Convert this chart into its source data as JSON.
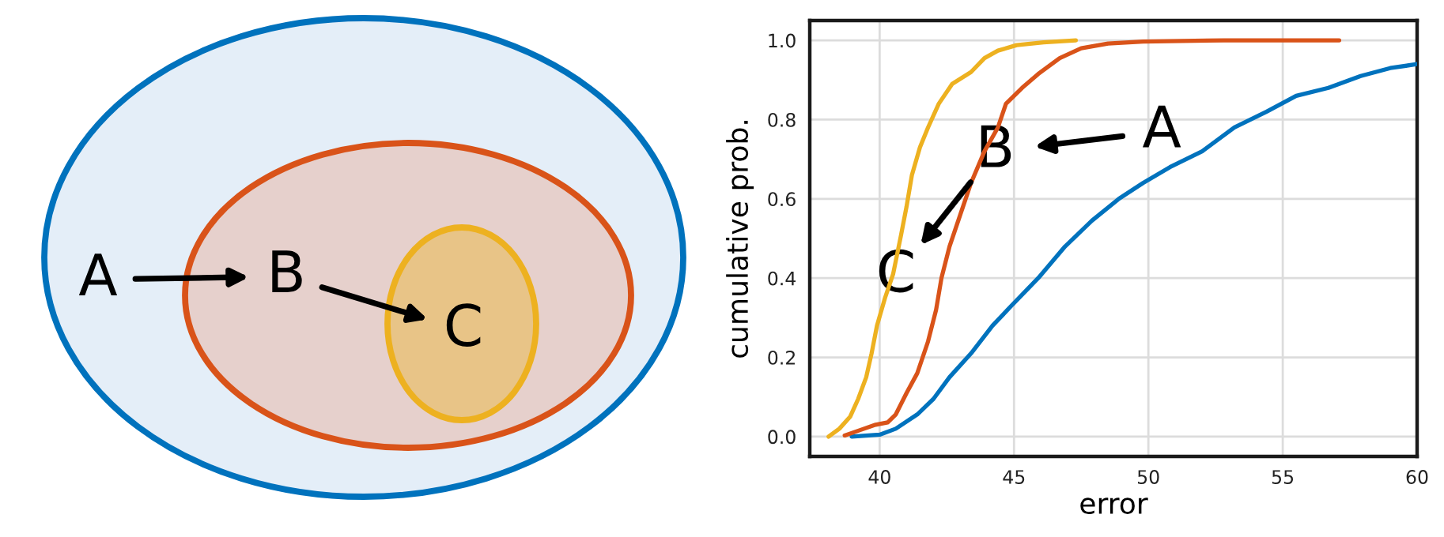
{
  "chart_data": [
    {
      "type": "other",
      "annotations": [
        "A",
        "B",
        "C"
      ]
    },
    {
      "type": "line",
      "xlabel": "error",
      "ylabel": "cumulative prob.",
      "xlim": [
        37.4,
        60
      ],
      "ylim": [
        -0.05,
        1.05
      ],
      "xticks": [
        40,
        45,
        50,
        55,
        60
      ],
      "yticks": [
        {
          "value": 0,
          "label": "0.0"
        },
        0.2,
        0.4,
        0.6,
        0.8,
        {
          "value": 1,
          "label": "1.0"
        }
      ],
      "grid": true,
      "series": [
        {
          "color": "#0072bd",
          "x": [
            38.96,
            40.0,
            40.6,
            41.4,
            42.0,
            42.6,
            43.4,
            44.2,
            44.9,
            45.9,
            46.9,
            47.9,
            48.9,
            49.8,
            50.8,
            52.0,
            53.2,
            54.4,
            55.5,
            56.7,
            57.9,
            59.0,
            60.0
          ],
          "values": [
            0.0,
            0.005,
            0.02,
            0.056,
            0.095,
            0.15,
            0.21,
            0.28,
            0.33,
            0.4,
            0.48,
            0.545,
            0.6,
            0.64,
            0.68,
            0.72,
            0.78,
            0.82,
            0.86,
            0.88,
            0.91,
            0.93,
            0.94
          ]
        },
        {
          "color": "#d95319",
          "x": [
            38.7,
            39.25,
            39.85,
            40.3,
            40.6,
            41.0,
            41.4,
            41.8,
            42.1,
            42.3,
            42.6,
            43.0,
            43.4,
            43.9,
            44.4,
            44.7,
            45.3,
            45.9,
            46.7,
            47.5,
            48.5,
            49.8,
            52.8,
            57.1
          ],
          "values": [
            0.003,
            0.016,
            0.03,
            0.036,
            0.056,
            0.11,
            0.16,
            0.24,
            0.32,
            0.4,
            0.48,
            0.56,
            0.64,
            0.72,
            0.78,
            0.84,
            0.88,
            0.915,
            0.955,
            0.98,
            0.992,
            0.997,
            1.0,
            1.0
          ]
        },
        {
          "color": "#edb120",
          "x": [
            38.1,
            38.5,
            38.9,
            39.2,
            39.5,
            39.7,
            39.9,
            40.2,
            40.5,
            40.8,
            41.0,
            41.2,
            41.5,
            41.8,
            42.2,
            42.7,
            43.4,
            43.9,
            44.4,
            45.1,
            46.1,
            47.3
          ],
          "values": [
            0.0,
            0.02,
            0.05,
            0.095,
            0.15,
            0.21,
            0.28,
            0.35,
            0.41,
            0.51,
            0.58,
            0.66,
            0.73,
            0.78,
            0.84,
            0.89,
            0.92,
            0.955,
            0.974,
            0.988,
            0.995,
            1.0
          ]
        }
      ],
      "annotations": [
        "A",
        "B",
        "C"
      ]
    }
  ]
}
